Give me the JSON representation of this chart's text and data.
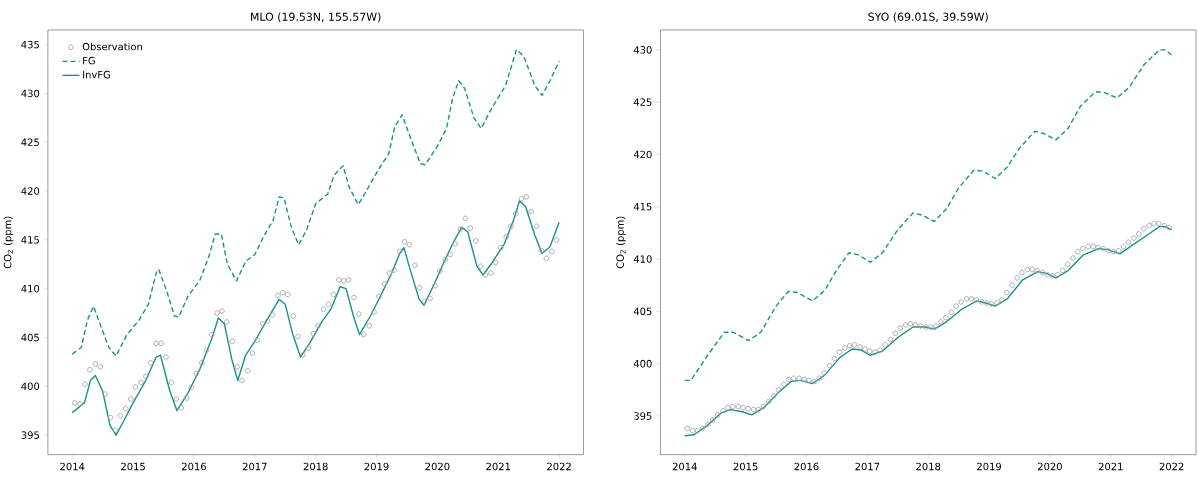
{
  "chart_data": [
    {
      "type": "line",
      "title": "MLO (19.53N, 155.57W)",
      "ylabel": "CO$_{2}$ (ppm)",
      "xlim": [
        2013.6,
        2022.4
      ],
      "xticks": [
        2014,
        2015,
        2016,
        2017,
        2018,
        2019,
        2020,
        2021,
        2022
      ],
      "ylim": [
        393.0,
        436.5
      ],
      "yticks": [
        395,
        400,
        405,
        410,
        415,
        420,
        425,
        430,
        435
      ],
      "legend": "top left",
      "series": [
        {
          "name": "Observation",
          "type": "scatter",
          "marker": "circle",
          "color": "#a0a0a0",
          "x": [
            2014.04,
            2014.13,
            2014.21,
            2014.29,
            2014.38,
            2014.46,
            2014.54,
            2014.63,
            2014.71,
            2014.79,
            2014.88,
            2014.96,
            2015.04,
            2015.13,
            2015.21,
            2015.29,
            2015.38,
            2015.46,
            2015.54,
            2015.63,
            2015.71,
            2015.79,
            2015.88,
            2015.96,
            2016.04,
            2016.13,
            2016.21,
            2016.29,
            2016.38,
            2016.46,
            2016.54,
            2016.63,
            2016.71,
            2016.79,
            2016.88,
            2016.96,
            2017.04,
            2017.13,
            2017.21,
            2017.29,
            2017.38,
            2017.46,
            2017.54,
            2017.63,
            2017.71,
            2017.79,
            2017.88,
            2017.96,
            2018.04,
            2018.13,
            2018.21,
            2018.29,
            2018.38,
            2018.46,
            2018.54,
            2018.63,
            2018.71,
            2018.79,
            2018.88,
            2018.96,
            2019.04,
            2019.13,
            2019.21,
            2019.29,
            2019.38,
            2019.46,
            2019.54,
            2019.63,
            2019.71,
            2019.79,
            2019.88,
            2019.96,
            2020.04,
            2020.13,
            2020.21,
            2020.29,
            2020.38,
            2020.46,
            2020.54,
            2020.63,
            2020.71,
            2020.79,
            2020.88,
            2020.96,
            2021.04,
            2021.13,
            2021.21,
            2021.29,
            2021.38,
            2021.46,
            2021.54,
            2021.63,
            2021.71,
            2021.79,
            2021.88,
            2021.96
          ],
          "values": [
            398.3,
            398.2,
            400.2,
            401.7,
            402.3,
            402.0,
            399.2,
            396.8,
            395.5,
            397.0,
            397.7,
            398.7,
            399.9,
            400.4,
            401.0,
            402.4,
            404.4,
            404.4,
            403.0,
            400.4,
            398.7,
            397.8,
            398.8,
            399.9,
            401.3,
            402.4,
            403.7,
            405.3,
            407.5,
            407.7,
            406.6,
            404.6,
            402.0,
            400.6,
            401.6,
            403.4,
            404.7,
            406.4,
            406.7,
            407.3,
            409.3,
            409.6,
            409.4,
            407.2,
            405.1,
            403.2,
            403.9,
            405.4,
            406.2,
            407.9,
            408.4,
            409.4,
            410.9,
            410.8,
            410.9,
            409.1,
            407.4,
            405.3,
            406.2,
            407.6,
            409.2,
            410.5,
            411.6,
            411.9,
            413.8,
            414.8,
            414.5,
            412.4,
            410.1,
            408.7,
            409.0,
            410.3,
            411.8,
            413.0,
            413.5,
            414.6,
            416.1,
            417.2,
            416.2,
            414.9,
            412.3,
            411.4,
            411.6,
            412.7,
            414.2,
            415.3,
            416.4,
            417.7,
            419.2,
            419.4,
            417.9,
            416.4,
            413.9,
            413.1,
            413.8,
            415.0
          ]
        },
        {
          "name": "FG",
          "type": "line",
          "line_style": "dashed",
          "color": "#1a9090",
          "x": [
            2014.0,
            2014.15,
            2014.25,
            2014.35,
            2014.45,
            2014.6,
            2014.72,
            2014.9,
            2015.1,
            2015.25,
            2015.38,
            2015.42,
            2015.55,
            2015.68,
            2015.75,
            2015.9,
            2016.1,
            2016.25,
            2016.35,
            2016.45,
            2016.55,
            2016.7,
            2016.85,
            2017.0,
            2017.15,
            2017.3,
            2017.4,
            2017.48,
            2017.6,
            2017.72,
            2017.85,
            2018.0,
            2018.2,
            2018.3,
            2018.45,
            2018.55,
            2018.7,
            2018.85,
            2019.05,
            2019.2,
            2019.3,
            2019.42,
            2019.55,
            2019.72,
            2019.8,
            2020.0,
            2020.15,
            2020.25,
            2020.35,
            2020.45,
            2020.6,
            2020.72,
            2020.85,
            2021.0,
            2021.12,
            2021.3,
            2021.42,
            2021.6,
            2021.72,
            2021.85,
            2022.0
          ],
          "values": [
            403.3,
            404.0,
            406.8,
            408.2,
            406.5,
            404.0,
            403.1,
            405.3,
            406.8,
            408.4,
            411.6,
            412.0,
            409.8,
            407.2,
            407.1,
            409.2,
            410.9,
            413.4,
            415.6,
            415.6,
            412.5,
            410.8,
            412.8,
            413.5,
            415.4,
            417.0,
            419.4,
            419.3,
            416.3,
            414.5,
            416.0,
            418.7,
            419.7,
            421.6,
            422.6,
            420.4,
            418.6,
            420.2,
            422.4,
            423.8,
            426.6,
            427.8,
            425.6,
            422.8,
            422.7,
            424.6,
            426.4,
            429.5,
            431.3,
            430.5,
            427.5,
            426.4,
            428.0,
            429.6,
            430.8,
            434.5,
            433.8,
            430.8,
            429.8,
            431.3,
            433.3
          ]
        },
        {
          "name": "InvFG",
          "type": "line",
          "line_style": "solid",
          "color": "#1a9090",
          "x": [
            2014.0,
            2014.2,
            2014.3,
            2014.38,
            2014.5,
            2014.62,
            2014.72,
            2014.85,
            2015.0,
            2015.2,
            2015.38,
            2015.45,
            2015.6,
            2015.72,
            2015.9,
            2016.1,
            2016.3,
            2016.4,
            2016.5,
            2016.62,
            2016.72,
            2016.85,
            2017.0,
            2017.2,
            2017.4,
            2017.5,
            2017.62,
            2017.75,
            2017.9,
            2018.1,
            2018.25,
            2018.4,
            2018.5,
            2018.62,
            2018.72,
            2018.9,
            2019.1,
            2019.25,
            2019.38,
            2019.45,
            2019.55,
            2019.7,
            2019.78,
            2019.95,
            2020.1,
            2020.25,
            2020.4,
            2020.5,
            2020.65,
            2020.75,
            2020.88,
            2021.1,
            2021.25,
            2021.35,
            2021.45,
            2021.6,
            2021.72,
            2021.85,
            2022.0
          ],
          "values": [
            397.3,
            398.3,
            400.6,
            401.1,
            399.5,
            396.0,
            395.0,
            396.5,
            398.3,
            400.5,
            403.0,
            403.2,
            399.6,
            397.5,
            399.3,
            401.8,
            405.0,
            407.0,
            406.4,
            402.8,
            400.6,
            403.2,
            404.6,
            406.8,
            408.9,
            408.4,
            405.4,
            403.0,
            404.4,
            406.6,
            407.9,
            410.2,
            410.0,
            407.2,
            405.3,
            407.2,
            409.7,
            411.6,
            413.6,
            414.2,
            412.0,
            408.9,
            408.3,
            410.5,
            412.6,
            414.6,
            416.3,
            415.8,
            412.3,
            411.4,
            412.5,
            414.6,
            417.0,
            419.0,
            418.4,
            415.5,
            413.6,
            414.3,
            416.8
          ]
        }
      ]
    },
    {
      "type": "line",
      "title": "SYO (69.01S, 39.59W)",
      "ylabel": "CO$_{2}$ (ppm)",
      "xlim": [
        2013.6,
        2022.4
      ],
      "xticks": [
        2014,
        2015,
        2016,
        2017,
        2018,
        2019,
        2020,
        2021,
        2022
      ],
      "ylim": [
        391.3,
        431.9
      ],
      "yticks": [
        395,
        400,
        405,
        410,
        415,
        420,
        425,
        430
      ],
      "series": [
        {
          "type": "scatter",
          "marker": "circle",
          "color": "#a0a0a0",
          "x": [
            2014.04,
            2014.13,
            2014.21,
            2014.29,
            2014.38,
            2014.46,
            2014.54,
            2014.63,
            2014.71,
            2014.79,
            2014.88,
            2014.96,
            2015.04,
            2015.13,
            2015.21,
            2015.29,
            2015.38,
            2015.46,
            2015.54,
            2015.63,
            2015.71,
            2015.79,
            2015.88,
            2015.96,
            2016.04,
            2016.13,
            2016.21,
            2016.29,
            2016.38,
            2016.46,
            2016.54,
            2016.63,
            2016.71,
            2016.79,
            2016.88,
            2016.96,
            2017.04,
            2017.13,
            2017.21,
            2017.29,
            2017.38,
            2017.46,
            2017.54,
            2017.63,
            2017.71,
            2017.79,
            2017.88,
            2017.96,
            2018.04,
            2018.13,
            2018.21,
            2018.29,
            2018.38,
            2018.46,
            2018.54,
            2018.63,
            2018.71,
            2018.79,
            2018.88,
            2018.96,
            2019.04,
            2019.13,
            2019.21,
            2019.29,
            2019.38,
            2019.46,
            2019.54,
            2019.63,
            2019.71,
            2019.79,
            2019.88,
            2019.96,
            2020.04,
            2020.13,
            2020.21,
            2020.29,
            2020.38,
            2020.46,
            2020.54,
            2020.63,
            2020.71,
            2020.79,
            2020.88,
            2020.96,
            2021.04,
            2021.13,
            2021.21,
            2021.29,
            2021.38,
            2021.46,
            2021.54,
            2021.63,
            2021.71,
            2021.79,
            2021.88,
            2021.96
          ],
          "values": [
            393.8,
            393.6,
            393.6,
            393.8,
            394.2,
            394.6,
            395.1,
            395.5,
            395.8,
            395.9,
            395.9,
            395.8,
            395.7,
            395.6,
            395.6,
            395.9,
            396.4,
            396.9,
            397.5,
            398.0,
            398.5,
            398.6,
            398.6,
            398.5,
            398.4,
            398.3,
            398.6,
            399.1,
            399.8,
            400.5,
            401.1,
            401.5,
            401.7,
            401.8,
            401.6,
            401.4,
            401.2,
            401.1,
            401.3,
            401.8,
            402.3,
            402.9,
            403.4,
            403.7,
            403.8,
            403.7,
            403.6,
            403.5,
            403.5,
            403.6,
            404.0,
            404.4,
            404.9,
            405.5,
            405.9,
            406.2,
            406.2,
            406.1,
            405.9,
            405.8,
            405.7,
            405.8,
            406.1,
            406.8,
            407.5,
            408.2,
            408.7,
            409.0,
            409.0,
            408.9,
            408.7,
            408.5,
            408.4,
            408.5,
            408.9,
            409.5,
            410.1,
            410.7,
            411.0,
            411.2,
            411.2,
            411.1,
            411.0,
            410.8,
            410.7,
            410.8,
            411.2,
            411.6,
            412.0,
            412.4,
            412.9,
            413.2,
            413.4,
            413.4,
            413.2,
            413.0
          ]
        },
        {
          "type": "line",
          "line_style": "dashed",
          "color": "#1a9090",
          "x": [
            2014.0,
            2014.1,
            2014.4,
            2014.65,
            2014.8,
            2015.05,
            2015.25,
            2015.5,
            2015.7,
            2015.85,
            2016.1,
            2016.3,
            2016.5,
            2016.7,
            2016.85,
            2017.05,
            2017.25,
            2017.5,
            2017.75,
            2017.9,
            2018.1,
            2018.3,
            2018.5,
            2018.75,
            2018.9,
            2019.1,
            2019.3,
            2019.5,
            2019.75,
            2019.9,
            2020.1,
            2020.3,
            2020.5,
            2020.75,
            2020.9,
            2021.1,
            2021.3,
            2021.55,
            2021.8,
            2021.9,
            2022.0
          ],
          "values": [
            398.4,
            398.4,
            401.0,
            403.0,
            403.0,
            402.2,
            403.0,
            405.5,
            406.9,
            406.8,
            406.0,
            407.0,
            409.0,
            410.6,
            410.4,
            409.7,
            410.6,
            412.8,
            414.4,
            414.2,
            413.6,
            414.8,
            416.8,
            418.5,
            418.4,
            417.7,
            418.8,
            420.6,
            422.2,
            422.0,
            421.4,
            422.5,
            424.6,
            426.0,
            425.9,
            425.4,
            426.4,
            428.6,
            430.0,
            430.0,
            429.5
          ]
        },
        {
          "type": "line",
          "line_style": "solid",
          "color": "#1a9090",
          "x": [
            2014.0,
            2014.15,
            2014.35,
            2014.6,
            2014.75,
            2014.95,
            2015.1,
            2015.3,
            2015.55,
            2015.75,
            2015.9,
            2016.1,
            2016.3,
            2016.55,
            2016.75,
            2016.9,
            2017.05,
            2017.25,
            2017.5,
            2017.75,
            2017.95,
            2018.1,
            2018.3,
            2018.55,
            2018.8,
            2018.95,
            2019.1,
            2019.3,
            2019.55,
            2019.8,
            2019.95,
            2020.1,
            2020.3,
            2020.55,
            2020.8,
            2020.95,
            2021.15,
            2021.35,
            2021.6,
            2021.8,
            2021.9,
            2022.0
          ],
          "values": [
            393.1,
            393.2,
            394.0,
            395.3,
            395.6,
            395.4,
            395.1,
            395.8,
            397.3,
            398.3,
            398.4,
            398.1,
            398.9,
            400.6,
            401.4,
            401.3,
            400.8,
            401.2,
            402.5,
            403.5,
            403.5,
            403.3,
            404.0,
            405.2,
            406.0,
            405.8,
            405.5,
            406.2,
            408.0,
            408.8,
            408.6,
            408.2,
            408.9,
            410.4,
            411.0,
            410.9,
            410.5,
            411.3,
            412.3,
            413.1,
            413.1,
            412.8
          ]
        }
      ]
    }
  ]
}
